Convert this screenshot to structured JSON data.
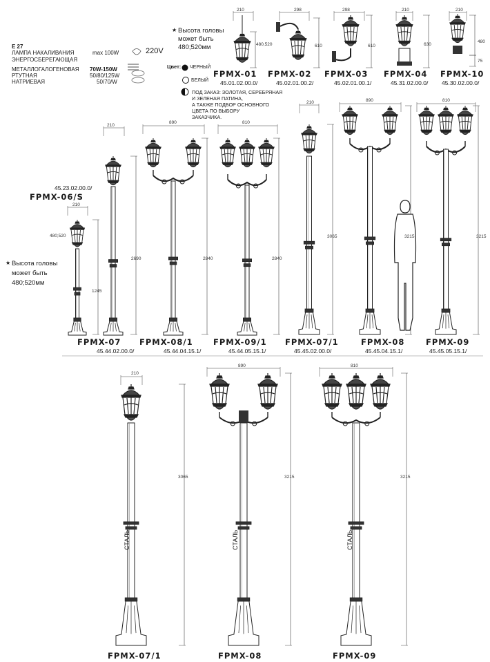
{
  "spec": {
    "socket": "E 27",
    "lamp_rows": [
      {
        "type": "ЛАМПА НАКАЛИВАНИЯ",
        "power": "max 100W"
      },
      {
        "type": "ЭНЕРГОСБЕРЕГАЮЩАЯ",
        "power": ""
      },
      {
        "type": "МЕТАЛЛОГАЛОГЕНОВАЯ",
        "power": "70W-150W"
      },
      {
        "type": "РТУТНАЯ",
        "power": "50/80/125W"
      },
      {
        "type": "НАТРИЕВАЯ",
        "power": "50/70/W"
      }
    ],
    "voltage": "220V"
  },
  "head_note": {
    "line1": "Высота головы",
    "line2": "может быть",
    "line3": "480;520мм"
  },
  "colors": {
    "label": "Цвет:",
    "black": "ЧЕРНЫЙ",
    "white": "БЕЛЫЙ",
    "order_note": [
      "ПОД ЗАКАЗ: ЗОЛОТАЯ, СЕРЕБРЯНАЯ",
      "И ЗЕЛЕНАЯ ПАТИНА,",
      "А ТАКЖЕ ПОДБОР ОСНОВНОГО",
      "ЦВЕТА ПО ВЫБОРУ",
      "ЗАКАЗЧИКА."
    ]
  },
  "row1": [
    {
      "model": "FPMX-01",
      "article": "45.01.02.00.0/",
      "w": "210",
      "h": "480,520"
    },
    {
      "model": "FPMX-02",
      "article": "45.02.01.00.2/",
      "w": "298",
      "h": "610"
    },
    {
      "model": "FPMX-03",
      "article": "45.02.01.00.1/",
      "w": "298",
      "h": "610"
    },
    {
      "model": "FPMX-04",
      "article": "45.31.02.00.0/",
      "w": "210",
      "h": "630"
    },
    {
      "model": "FPMX-10",
      "article": "45.30.02.00.0/",
      "w": "210",
      "h": "480",
      "h2": "75"
    }
  ],
  "row2": [
    {
      "model": "FPMX-06/S",
      "article": "45.23.02.00.0/",
      "w": "210",
      "h": "1245",
      "head": "480;520"
    },
    {
      "model": "FPMX-07",
      "article": "45.44.02.00.0/",
      "w": "210",
      "h": "2690"
    },
    {
      "model": "FPMX-08/1",
      "article": "45.44.04.15.1/",
      "w": "890",
      "h": "2840"
    },
    {
      "model": "FPMX-09/1",
      "article": "45.44.05.15.1/",
      "w": "810",
      "h": "2840"
    },
    {
      "model": "FPMX-07/1",
      "article": "45.45.02.00.0/",
      "w": "210",
      "h": "3065"
    },
    {
      "model": "FPMX-08",
      "article": "45.45.04.15.1/",
      "w": "890",
      "h": "3215"
    },
    {
      "model": "FPMX-09",
      "article": "45.45.05.15.1/",
      "w": "810",
      "h": "3215"
    }
  ],
  "row3": [
    {
      "model": "FPMX-07/1",
      "w": "210",
      "h": "3065",
      "material": "СТАЛЬ"
    },
    {
      "model": "FPMX-08",
      "w": "890",
      "h": "3215",
      "material": "СТАЛЬ"
    },
    {
      "model": "FPMX-09",
      "w": "810",
      "h": "3215",
      "material": "СТАЛЬ"
    }
  ]
}
